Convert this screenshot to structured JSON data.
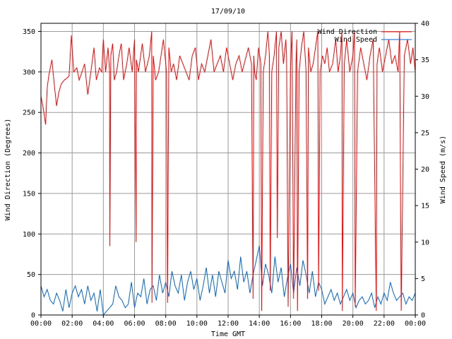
{
  "chart_data": {
    "type": "line",
    "title": "17/09/10",
    "xlabel": "Time GMT",
    "ylabel_left": "Wind Direction (Degrees)",
    "ylabel_right": "Wind Speed (m/s)",
    "x_range_hours": [
      0,
      24
    ],
    "x_tick_labels": [
      "00:00",
      "02:00",
      "04:00",
      "06:00",
      "08:00",
      "10:00",
      "12:00",
      "14:00",
      "16:00",
      "18:00",
      "20:00",
      "22:00",
      "00:00"
    ],
    "y_left_range": [
      0,
      360
    ],
    "y_left_ticks": [
      0,
      50,
      100,
      150,
      200,
      250,
      300,
      350
    ],
    "y_right_range": [
      0,
      40
    ],
    "y_right_ticks": [
      0,
      5,
      10,
      15,
      20,
      25,
      30,
      35,
      40
    ],
    "grid": true,
    "legend_position": "top-right",
    "series": [
      {
        "name": "Wind Direction",
        "color": "#ff0000",
        "axis": "left",
        "x": [
          0.0,
          0.15,
          0.3,
          0.4,
          0.5,
          0.7,
          0.85,
          1.0,
          1.15,
          1.3,
          1.5,
          1.65,
          1.8,
          1.95,
          2.0,
          2.1,
          2.3,
          2.45,
          2.6,
          2.8,
          3.0,
          3.2,
          3.4,
          3.55,
          3.75,
          3.9,
          4.0,
          4.15,
          4.3,
          4.4,
          4.42,
          4.48,
          4.6,
          4.7,
          4.85,
          5.0,
          5.15,
          5.3,
          5.5,
          5.65,
          5.85,
          6.0,
          6.1,
          6.12,
          6.25,
          6.5,
          6.7,
          6.95,
          7.1,
          7.12,
          7.2,
          7.35,
          7.55,
          7.7,
          7.85,
          8.0,
          8.05,
          8.1,
          8.12,
          8.2,
          8.35,
          8.5,
          8.7,
          8.9,
          9.1,
          9.3,
          9.5,
          9.7,
          9.9,
          10.1,
          10.3,
          10.5,
          10.7,
          10.9,
          11.1,
          11.3,
          11.5,
          11.7,
          11.9,
          12.1,
          12.3,
          12.5,
          12.7,
          12.9,
          13.1,
          13.3,
          13.5,
          13.6,
          13.65,
          13.7,
          13.8,
          13.95,
          14.1,
          14.15,
          14.25,
          14.4,
          14.55,
          14.65,
          14.7,
          14.8,
          14.95,
          15.1,
          15.15,
          15.25,
          15.4,
          15.55,
          15.7,
          15.75,
          15.85,
          16.0,
          16.05,
          16.1,
          16.2,
          16.35,
          16.4,
          16.45,
          16.55,
          16.7,
          16.85,
          17.0,
          17.1,
          17.15,
          17.3,
          17.45,
          17.6,
          17.75,
          17.8,
          17.9,
          18.05,
          18.2,
          18.35,
          18.5,
          18.7,
          18.9,
          19.05,
          19.2,
          19.3,
          19.32,
          19.45,
          19.6,
          19.8,
          20.0,
          20.1,
          20.15,
          20.3,
          20.5,
          20.7,
          20.9,
          21.1,
          21.3,
          21.5,
          21.55,
          21.7,
          21.9,
          22.1,
          22.3,
          22.5,
          22.7,
          22.9,
          23.0,
          23.1,
          23.3,
          23.5,
          23.7,
          23.85,
          24.0
        ],
        "y": [
          270,
          255,
          235,
          280,
          295,
          315,
          285,
          258,
          275,
          285,
          290,
          292,
          295,
          345,
          330,
          300,
          305,
          290,
          298,
          310,
          272,
          300,
          330,
          290,
          305,
          300,
          340,
          300,
          330,
          300,
          85,
          320,
          335,
          290,
          300,
          320,
          335,
          290,
          310,
          330,
          300,
          340,
          90,
          315,
          300,
          335,
          300,
          320,
          350,
          15,
          320,
          290,
          300,
          320,
          340,
          310,
          300,
          90,
          15,
          330,
          300,
          310,
          290,
          320,
          310,
          300,
          290,
          320,
          330,
          290,
          310,
          300,
          320,
          340,
          300,
          310,
          320,
          300,
          330,
          310,
          290,
          310,
          320,
          300,
          315,
          330,
          310,
          20,
          320,
          300,
          290,
          330,
          310,
          5,
          300,
          320,
          350,
          320,
          30,
          300,
          320,
          350,
          95,
          330,
          350,
          310,
          340,
          320,
          10,
          300,
          330,
          350,
          20,
          310,
          340,
          5,
          300,
          330,
          350,
          300,
          20,
          330,
          300,
          310,
          330,
          350,
          30,
          300,
          320,
          310,
          330,
          300,
          310,
          340,
          300,
          320,
          350,
          5,
          310,
          340,
          300,
          320,
          350,
          10,
          300,
          330,
          310,
          290,
          320,
          340,
          5,
          310,
          330,
          300,
          320,
          340,
          310,
          320,
          300,
          350,
          5,
          320,
          340,
          310,
          330,
          300
        ]
      },
      {
        "name": "Wind Speed",
        "color": "#0066cc",
        "axis": "right",
        "x": [
          0.0,
          0.2,
          0.4,
          0.6,
          0.8,
          1.0,
          1.2,
          1.4,
          1.6,
          1.8,
          2.0,
          2.2,
          2.4,
          2.6,
          2.8,
          3.0,
          3.2,
          3.4,
          3.6,
          3.8,
          4.0,
          4.2,
          4.4,
          4.6,
          4.8,
          5.0,
          5.2,
          5.4,
          5.6,
          5.8,
          6.0,
          6.2,
          6.4,
          6.6,
          6.8,
          7.0,
          7.2,
          7.4,
          7.6,
          7.8,
          8.0,
          8.2,
          8.4,
          8.6,
          8.8,
          9.0,
          9.2,
          9.4,
          9.6,
          9.8,
          10.0,
          10.2,
          10.4,
          10.6,
          10.8,
          11.0,
          11.2,
          11.4,
          11.6,
          11.8,
          12.0,
          12.2,
          12.4,
          12.6,
          12.8,
          13.0,
          13.2,
          13.4,
          13.6,
          13.8,
          14.0,
          14.2,
          14.4,
          14.6,
          14.8,
          15.0,
          15.2,
          15.4,
          15.6,
          15.8,
          16.0,
          16.2,
          16.4,
          16.6,
          16.8,
          17.0,
          17.2,
          17.4,
          17.6,
          17.8,
          18.0,
          18.2,
          18.4,
          18.6,
          18.8,
          19.0,
          19.2,
          19.4,
          19.6,
          19.8,
          20.0,
          20.2,
          20.4,
          20.6,
          20.8,
          21.0,
          21.2,
          21.4,
          21.6,
          21.8,
          22.0,
          22.2,
          22.4,
          22.6,
          22.8,
          23.0,
          23.2,
          23.4,
          23.6,
          23.8,
          24.0
        ],
        "y": [
          4.0,
          2.5,
          3.5,
          2.0,
          1.5,
          3.0,
          2.0,
          0.5,
          3.5,
          1.0,
          3.0,
          4.0,
          2.5,
          3.5,
          1.5,
          4.0,
          2.0,
          3.0,
          0.5,
          3.5,
          0.0,
          0.5,
          1.0,
          1.5,
          4.0,
          2.5,
          2.0,
          1.0,
          1.5,
          4.5,
          1.0,
          3.0,
          2.5,
          5.0,
          1.5,
          3.5,
          4.0,
          2.0,
          5.5,
          3.0,
          4.5,
          2.5,
          6.0,
          4.0,
          3.0,
          5.5,
          2.0,
          4.5,
          6.0,
          3.5,
          5.0,
          2.0,
          4.0,
          6.5,
          3.0,
          5.5,
          2.5,
          6.0,
          4.5,
          3.0,
          7.5,
          5.0,
          6.0,
          3.5,
          8.0,
          4.5,
          6.0,
          3.0,
          5.5,
          7.5,
          9.5,
          4.0,
          7.0,
          5.5,
          3.0,
          8.0,
          4.5,
          6.5,
          2.5,
          5.0,
          7.0,
          3.0,
          6.5,
          4.0,
          7.5,
          5.5,
          3.0,
          6.0,
          2.5,
          4.5,
          3.5,
          1.5,
          2.5,
          3.5,
          2.0,
          3.0,
          1.5,
          2.5,
          3.5,
          2.0,
          3.0,
          1.0,
          2.0,
          2.5,
          1.5,
          2.0,
          3.0,
          1.0,
          2.5,
          1.5,
          3.0,
          2.0,
          4.5,
          3.0,
          2.0,
          2.5,
          3.0,
          1.5,
          2.5,
          2.0,
          3.0
        ]
      }
    ]
  }
}
